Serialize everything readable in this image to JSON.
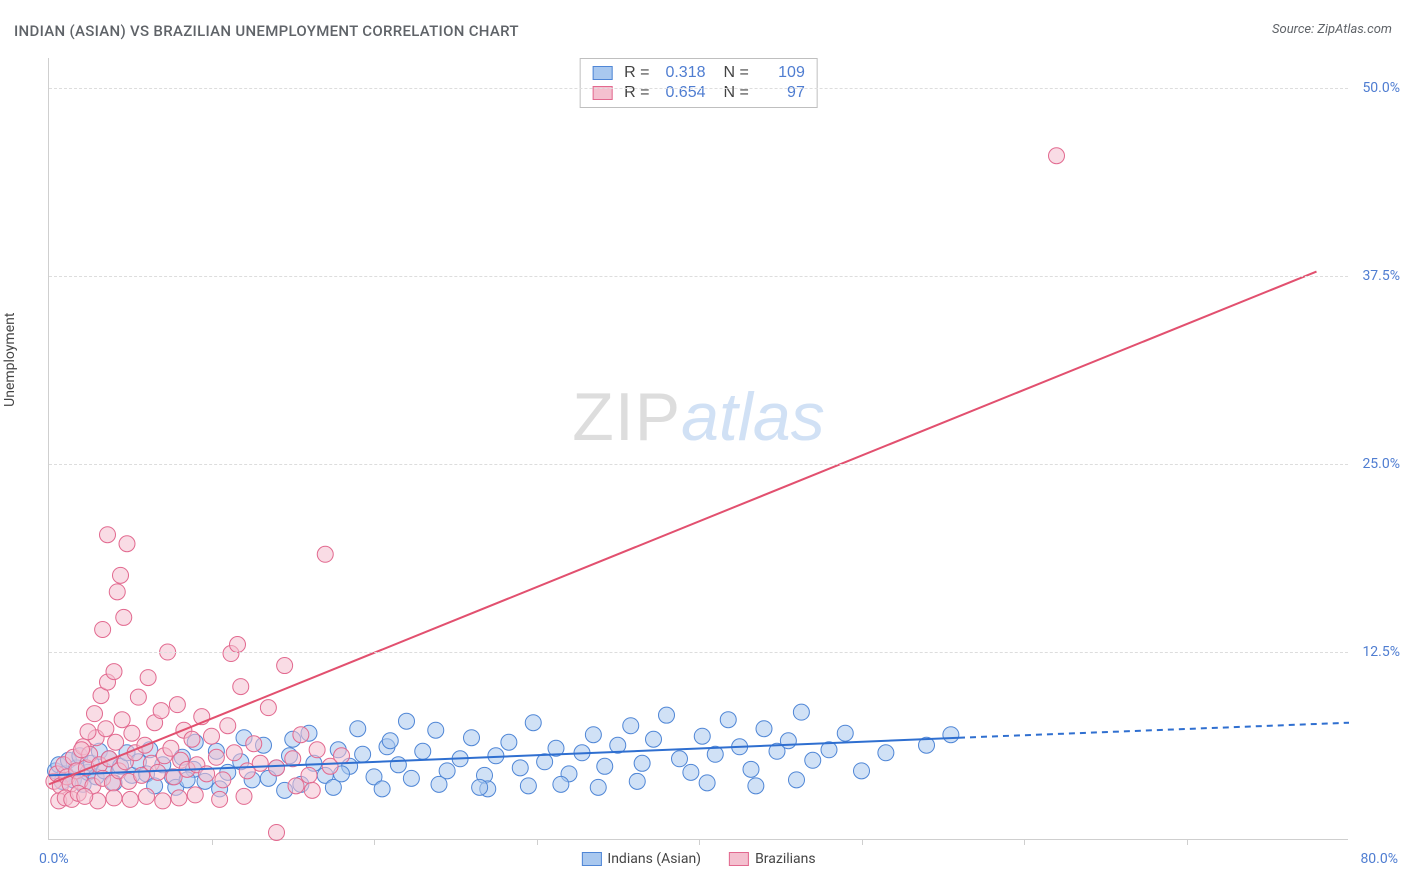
{
  "title": "INDIAN (ASIAN) VS BRAZILIAN UNEMPLOYMENT CORRELATION CHART",
  "source_label": "Source: ZipAtlas.com",
  "ylabel": "Unemployment",
  "watermark": {
    "left": "ZIP",
    "right": "atlas"
  },
  "chart": {
    "type": "scatter",
    "xlim": [
      0,
      80
    ],
    "ylim": [
      0,
      52
    ],
    "x_axis_label_min": "0.0%",
    "x_axis_label_max": "80.0%",
    "x_ticks": [
      10,
      20,
      30,
      40,
      50,
      60,
      70
    ],
    "y_ticks": [
      {
        "v": 12.5,
        "label": "12.5%"
      },
      {
        "v": 25.0,
        "label": "25.0%"
      },
      {
        "v": 37.5,
        "label": "37.5%"
      },
      {
        "v": 50.0,
        "label": "50.0%"
      }
    ],
    "plot_bg": "#ffffff",
    "grid_color": "#dddddd",
    "axis_color": "#cfcfcf",
    "tick_label_color": "#4f7dd1",
    "title_color": "#5f6368",
    "marker_radius": 8,
    "marker_opacity": 0.55,
    "line_width_solid": 2,
    "line_width_dash": 2
  },
  "series": [
    {
      "id": "indians",
      "legend_label": "Indians (Asian)",
      "fill_color": "#a9c8ef",
      "stroke_color": "#4f86d6",
      "line_color": "#2f6fd0",
      "stats": {
        "R": "0.318",
        "N": "109"
      },
      "trend": {
        "solid": {
          "x1": 0,
          "y1": 4.3,
          "x2": 56,
          "y2": 6.8
        },
        "dash": {
          "x1": 56,
          "y1": 6.8,
          "x2": 80,
          "y2": 7.8
        }
      },
      "points": [
        [
          0.4,
          4.6
        ],
        [
          0.6,
          5.0
        ],
        [
          0.8,
          3.9
        ],
        [
          1.0,
          4.4
        ],
        [
          1.2,
          5.3
        ],
        [
          1.5,
          4.0
        ],
        [
          1.7,
          4.8
        ],
        [
          1.9,
          5.6
        ],
        [
          2.1,
          3.7
        ],
        [
          2.4,
          4.5
        ],
        [
          2.6,
          5.1
        ],
        [
          2.9,
          4.2
        ],
        [
          3.1,
          5.9
        ],
        [
          3.4,
          4.6
        ],
        [
          3.7,
          5.4
        ],
        [
          4.0,
          3.8
        ],
        [
          4.4,
          4.9
        ],
        [
          4.8,
          5.8
        ],
        [
          5.1,
          4.3
        ],
        [
          5.5,
          5.2
        ],
        [
          6.0,
          4.4
        ],
        [
          6.5,
          3.6
        ],
        [
          7.0,
          5.0
        ],
        [
          7.6,
          4.2
        ],
        [
          8.2,
          5.5
        ],
        [
          8.9,
          4.7
        ],
        [
          9.6,
          3.9
        ],
        [
          10.3,
          5.9
        ],
        [
          11.0,
          4.5
        ],
        [
          11.8,
          5.2
        ],
        [
          12.5,
          4.0
        ],
        [
          13.2,
          6.3
        ],
        [
          14.0,
          4.8
        ],
        [
          14.8,
          5.6
        ],
        [
          15.5,
          3.7
        ],
        [
          16.3,
          5.1
        ],
        [
          17.0,
          4.3
        ],
        [
          17.8,
          6.0
        ],
        [
          18.5,
          4.9
        ],
        [
          19.3,
          5.7
        ],
        [
          20.0,
          4.2
        ],
        [
          20.8,
          6.2
        ],
        [
          21.5,
          5.0
        ],
        [
          22.3,
          4.1
        ],
        [
          23.0,
          5.9
        ],
        [
          23.8,
          7.3
        ],
        [
          24.5,
          4.6
        ],
        [
          25.3,
          5.4
        ],
        [
          26.0,
          6.8
        ],
        [
          26.8,
          4.3
        ],
        [
          27.5,
          5.6
        ],
        [
          28.3,
          6.5
        ],
        [
          29.0,
          4.8
        ],
        [
          29.8,
          7.8
        ],
        [
          30.5,
          5.2
        ],
        [
          31.2,
          6.1
        ],
        [
          32.0,
          4.4
        ],
        [
          32.8,
          5.8
        ],
        [
          33.5,
          7.0
        ],
        [
          34.2,
          4.9
        ],
        [
          35.0,
          6.3
        ],
        [
          35.8,
          7.6
        ],
        [
          36.5,
          5.1
        ],
        [
          37.2,
          6.7
        ],
        [
          38.0,
          8.3
        ],
        [
          38.8,
          5.4
        ],
        [
          39.5,
          4.5
        ],
        [
          40.2,
          6.9
        ],
        [
          41.0,
          5.7
        ],
        [
          41.8,
          8.0
        ],
        [
          42.5,
          6.2
        ],
        [
          43.2,
          4.7
        ],
        [
          44.0,
          7.4
        ],
        [
          44.8,
          5.9
        ],
        [
          45.5,
          6.6
        ],
        [
          46.3,
          8.5
        ],
        [
          47.0,
          5.3
        ],
        [
          48.0,
          6.0
        ],
        [
          49.0,
          7.1
        ],
        [
          50.0,
          4.6
        ],
        [
          51.5,
          5.8
        ],
        [
          54.0,
          6.3
        ],
        [
          55.5,
          7.0
        ],
        [
          27.0,
          3.4
        ],
        [
          29.5,
          3.6
        ],
        [
          31.5,
          3.7
        ],
        [
          33.8,
          3.5
        ],
        [
          36.2,
          3.9
        ],
        [
          40.5,
          3.8
        ],
        [
          43.5,
          3.6
        ],
        [
          46.0,
          4.0
        ],
        [
          12.0,
          6.8
        ],
        [
          16.0,
          7.1
        ],
        [
          19.0,
          7.4
        ],
        [
          22.0,
          7.9
        ],
        [
          14.5,
          3.3
        ],
        [
          17.5,
          3.5
        ],
        [
          20.5,
          3.4
        ],
        [
          24.0,
          3.7
        ],
        [
          26.5,
          3.5
        ],
        [
          9.0,
          6.5
        ],
        [
          10.5,
          3.4
        ],
        [
          13.5,
          4.1
        ],
        [
          18.0,
          4.4
        ],
        [
          21.0,
          6.6
        ],
        [
          6.2,
          6.0
        ],
        [
          7.8,
          3.5
        ],
        [
          8.5,
          4.0
        ],
        [
          15.0,
          6.7
        ]
      ]
    },
    {
      "id": "brazilians",
      "legend_label": "Brazilians",
      "fill_color": "#f4c0cf",
      "stroke_color": "#e2698f",
      "line_color": "#e2506f",
      "stats": {
        "R": "0.654",
        "N": "97"
      },
      "trend": {
        "solid": {
          "x1": 0,
          "y1": 3.7,
          "x2": 78,
          "y2": 37.8
        },
        "dash": null
      },
      "points": [
        [
          0.3,
          3.9
        ],
        [
          0.5,
          4.4
        ],
        [
          0.7,
          3.6
        ],
        [
          0.9,
          5.0
        ],
        [
          1.1,
          4.2
        ],
        [
          1.3,
          3.7
        ],
        [
          1.5,
          5.5
        ],
        [
          1.7,
          4.6
        ],
        [
          1.9,
          3.9
        ],
        [
          2.1,
          6.2
        ],
        [
          2.3,
          4.8
        ],
        [
          2.5,
          5.7
        ],
        [
          2.7,
          3.6
        ],
        [
          2.9,
          6.8
        ],
        [
          3.1,
          5.0
        ],
        [
          3.3,
          4.1
        ],
        [
          3.5,
          7.4
        ],
        [
          3.7,
          5.4
        ],
        [
          3.9,
          3.8
        ],
        [
          4.1,
          6.5
        ],
        [
          4.3,
          4.6
        ],
        [
          4.5,
          8.0
        ],
        [
          4.7,
          5.2
        ],
        [
          4.9,
          3.9
        ],
        [
          5.1,
          7.1
        ],
        [
          5.3,
          5.8
        ],
        [
          5.5,
          9.5
        ],
        [
          5.7,
          4.3
        ],
        [
          5.9,
          6.3
        ],
        [
          6.1,
          10.8
        ],
        [
          6.3,
          5.1
        ],
        [
          6.5,
          7.8
        ],
        [
          6.7,
          4.5
        ],
        [
          6.9,
          8.6
        ],
        [
          7.1,
          5.6
        ],
        [
          7.3,
          12.5
        ],
        [
          7.5,
          6.1
        ],
        [
          7.7,
          4.2
        ],
        [
          7.9,
          9.0
        ],
        [
          8.1,
          5.3
        ],
        [
          8.3,
          7.3
        ],
        [
          8.5,
          4.7
        ],
        [
          8.8,
          6.7
        ],
        [
          9.1,
          5.0
        ],
        [
          9.4,
          8.2
        ],
        [
          9.7,
          4.4
        ],
        [
          10.0,
          6.9
        ],
        [
          10.3,
          5.5
        ],
        [
          10.7,
          4.0
        ],
        [
          11.0,
          7.6
        ],
        [
          11.4,
          5.8
        ],
        [
          11.8,
          10.2
        ],
        [
          12.2,
          4.6
        ],
        [
          12.6,
          6.4
        ],
        [
          13.0,
          5.1
        ],
        [
          13.5,
          8.8
        ],
        [
          14.0,
          4.8
        ],
        [
          14.5,
          11.6
        ],
        [
          15.0,
          5.4
        ],
        [
          15.5,
          7.0
        ],
        [
          16.0,
          4.3
        ],
        [
          16.5,
          6.0
        ],
        [
          17.0,
          19.0
        ],
        [
          17.3,
          4.9
        ],
        [
          18.0,
          5.6
        ],
        [
          3.0,
          2.6
        ],
        [
          4.0,
          2.8
        ],
        [
          5.0,
          2.7
        ],
        [
          6.0,
          2.9
        ],
        [
          7.0,
          2.6
        ],
        [
          8.0,
          2.8
        ],
        [
          9.0,
          3.0
        ],
        [
          10.5,
          2.7
        ],
        [
          12.0,
          2.9
        ],
        [
          14.0,
          0.5
        ],
        [
          3.3,
          14.0
        ],
        [
          4.6,
          14.8
        ],
        [
          4.2,
          16.5
        ],
        [
          4.8,
          19.7
        ],
        [
          4.4,
          17.6
        ],
        [
          3.6,
          20.3
        ],
        [
          62.0,
          45.5
        ],
        [
          0.6,
          2.6
        ],
        [
          1.0,
          2.8
        ],
        [
          1.4,
          2.7
        ],
        [
          1.8,
          3.1
        ],
        [
          2.2,
          2.9
        ],
        [
          2.0,
          6.0
        ],
        [
          2.4,
          7.2
        ],
        [
          2.8,
          8.4
        ],
        [
          3.2,
          9.6
        ],
        [
          3.6,
          10.5
        ],
        [
          4.0,
          11.2
        ],
        [
          11.2,
          12.4
        ],
        [
          11.6,
          13.0
        ],
        [
          15.2,
          3.6
        ],
        [
          16.2,
          3.3
        ]
      ]
    }
  ],
  "stats_box": {
    "R_label": "R =",
    "N_label": "N ="
  },
  "bottom_legend_order": [
    "indians",
    "brazilians"
  ]
}
